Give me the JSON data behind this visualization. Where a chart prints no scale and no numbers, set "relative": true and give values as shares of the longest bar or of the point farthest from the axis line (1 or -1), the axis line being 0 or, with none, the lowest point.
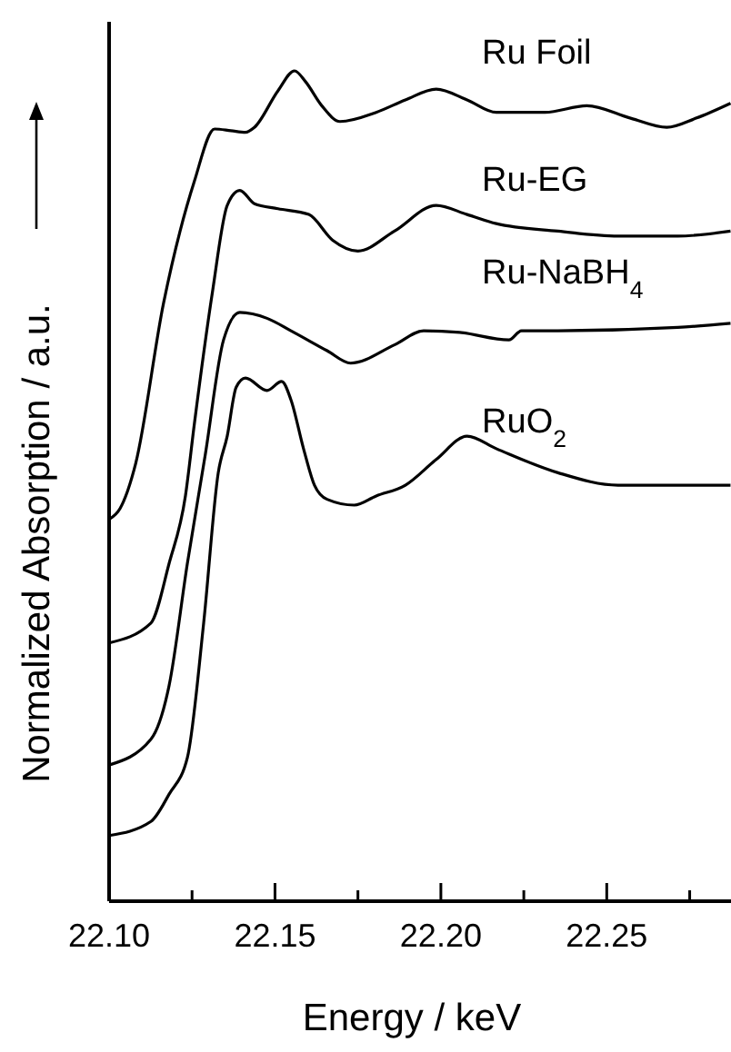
{
  "chart_data": {
    "type": "line",
    "relative": true,
    "xlabel": "Energy / keV",
    "ylabel": "Normalized Absorption / a.u.",
    "xlim": [
      22.1,
      22.288
    ],
    "xticks": [
      {
        "value": 22.1,
        "label": "22.10"
      },
      {
        "value": 22.125,
        "label": null
      },
      {
        "value": 22.15,
        "label": "22.15"
      },
      {
        "value": 22.175,
        "label": null
      },
      {
        "value": 22.2,
        "label": "22.20"
      },
      {
        "value": 22.225,
        "label": null
      },
      {
        "value": 22.25,
        "label": "22.25"
      },
      {
        "value": 22.275,
        "label": null
      }
    ],
    "grid": false,
    "series": [
      {
        "name": "Ru Foil",
        "color": "#000000",
        "x": [
          22.1,
          22.1033,
          22.108,
          22.1164,
          22.1257,
          22.1318,
          22.1367,
          22.1411,
          22.1438,
          22.1509,
          22.1559,
          22.1592,
          22.1641,
          22.1696,
          22.1805,
          22.1893,
          22.1986,
          22.2079,
          22.2167,
          22.2314,
          22.244,
          22.2572,
          22.2681,
          22.2769,
          22.2873
        ],
        "values": [
          0.46,
          0.473,
          0.527,
          0.72,
          0.867,
          0.93,
          0.928,
          0.926,
          0.932,
          0.976,
          1.0,
          0.987,
          0.958,
          0.939,
          0.95,
          0.965,
          0.978,
          0.965,
          0.95,
          0.95,
          0.958,
          0.943,
          0.932,
          0.943,
          0.961
        ]
      },
      {
        "name": "Ru-EG",
        "color": "#000000",
        "x": [
          22.1,
          22.1126,
          22.1181,
          22.123,
          22.1257,
          22.1312,
          22.1356,
          22.1394,
          22.1438,
          22.1509,
          22.1602,
          22.1674,
          22.175,
          22.186,
          22.1986,
          22.2079,
          22.2167,
          22.2353,
          22.2534,
          22.2714,
          22.2873
        ],
        "values": [
          0.311,
          0.335,
          0.407,
          0.488,
          0.575,
          0.735,
          0.838,
          0.856,
          0.84,
          0.834,
          0.827,
          0.796,
          0.783,
          0.807,
          0.838,
          0.827,
          0.816,
          0.807,
          0.801,
          0.801,
          0.807
        ]
      },
      {
        "name": "Ru-NaBH$_{4}$",
        "color": "#000000",
        "x": [
          22.1,
          22.1126,
          22.1181,
          22.1236,
          22.129,
          22.1345,
          22.1394,
          22.1476,
          22.1548,
          22.1657,
          22.1728,
          22.186,
          22.1948,
          22.2057,
          22.2205,
          22.2243,
          22.2353,
          22.2714,
          22.2873
        ],
        "values": [
          0.164,
          0.195,
          0.26,
          0.407,
          0.538,
          0.676,
          0.709,
          0.702,
          0.687,
          0.663,
          0.648,
          0.67,
          0.687,
          0.685,
          0.676,
          0.687,
          0.687,
          0.691,
          0.696
        ]
      },
      {
        "name": "RuO$_{2}$",
        "color": "#000000",
        "x": [
          22.1,
          22.1126,
          22.1181,
          22.1236,
          22.1285,
          22.1329,
          22.1356,
          22.1383,
          22.1411,
          22.1476,
          22.152,
          22.1548,
          22.1586,
          22.1619,
          22.1657,
          22.1739,
          22.1805,
          22.1893,
          22.1986,
          22.2079,
          22.2167,
          22.2353,
          22.2534,
          22.2873
        ],
        "values": [
          0.079,
          0.096,
          0.129,
          0.173,
          0.335,
          0.516,
          0.56,
          0.619,
          0.63,
          0.615,
          0.626,
          0.604,
          0.545,
          0.501,
          0.484,
          0.477,
          0.488,
          0.501,
          0.532,
          0.56,
          0.545,
          0.516,
          0.501,
          0.501
        ]
      }
    ]
  }
}
